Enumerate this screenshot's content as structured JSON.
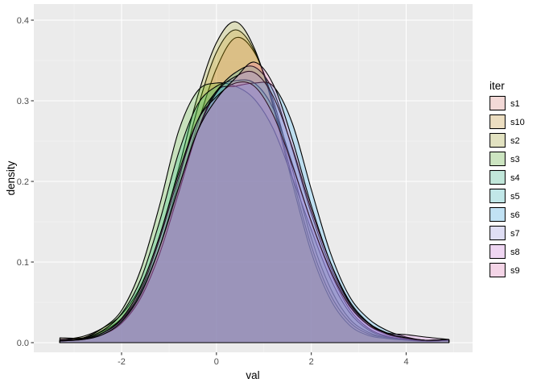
{
  "chart_data": {
    "type": "area",
    "title": "",
    "xlabel": "val",
    "ylabel": "density",
    "xlim": [
      -3.85,
      5.4
    ],
    "ylim": [
      -0.012,
      0.42
    ],
    "x_ticks": [
      -2,
      0,
      2,
      4
    ],
    "x_tick_labels": [
      "-2",
      "0",
      "2",
      "4"
    ],
    "y_ticks": [
      0.0,
      0.1,
      0.2,
      0.3,
      0.4
    ],
    "y_tick_labels": [
      "0.0",
      "0.1",
      "0.2",
      "0.3",
      "0.4"
    ],
    "grid": true,
    "legend": {
      "title": "iter",
      "position": "right"
    },
    "x": [
      -3.3,
      -2.8,
      -2.4,
      -2.0,
      -1.6,
      -1.2,
      -0.8,
      -0.4,
      0.0,
      0.4,
      0.8,
      1.2,
      1.6,
      2.0,
      2.4,
      2.8,
      3.2,
      3.6,
      4.0,
      4.4,
      4.9
    ],
    "series": [
      {
        "name": "s1",
        "color": "#F8766D",
        "values": [
          0.006,
          0.006,
          0.014,
          0.03,
          0.062,
          0.118,
          0.19,
          0.27,
          0.34,
          0.378,
          0.36,
          0.3,
          0.215,
          0.13,
          0.068,
          0.03,
          0.013,
          0.006,
          0.004,
          0.003,
          0.004
        ]
      },
      {
        "name": "s10",
        "color": "#D89000",
        "values": [
          0.003,
          0.004,
          0.01,
          0.025,
          0.058,
          0.118,
          0.2,
          0.29,
          0.36,
          0.388,
          0.362,
          0.295,
          0.205,
          0.12,
          0.06,
          0.026,
          0.011,
          0.006,
          0.004,
          0.003,
          0.004
        ]
      },
      {
        "name": "s2",
        "color": "#A3A500",
        "values": [
          0.003,
          0.008,
          0.018,
          0.035,
          0.07,
          0.132,
          0.215,
          0.305,
          0.372,
          0.398,
          0.365,
          0.292,
          0.198,
          0.112,
          0.054,
          0.022,
          0.009,
          0.005,
          0.003,
          0.002,
          0.003
        ]
      },
      {
        "name": "s3",
        "color": "#39B600",
        "values": [
          0.002,
          0.006,
          0.018,
          0.04,
          0.09,
          0.17,
          0.262,
          0.312,
          0.322,
          0.318,
          0.302,
          0.265,
          0.205,
          0.14,
          0.08,
          0.038,
          0.016,
          0.007,
          0.004,
          0.002,
          0.003
        ]
      },
      {
        "name": "s4",
        "color": "#00BF7D",
        "values": [
          0.002,
          0.006,
          0.015,
          0.036,
          0.078,
          0.15,
          0.235,
          0.295,
          0.318,
          0.325,
          0.322,
          0.29,
          0.222,
          0.15,
          0.088,
          0.042,
          0.018,
          0.008,
          0.004,
          0.002,
          0.003
        ]
      },
      {
        "name": "s5",
        "color": "#00BFC4",
        "values": [
          0.003,
          0.005,
          0.012,
          0.028,
          0.064,
          0.128,
          0.205,
          0.275,
          0.312,
          0.335,
          0.342,
          0.312,
          0.24,
          0.16,
          0.095,
          0.048,
          0.022,
          0.01,
          0.005,
          0.003,
          0.004
        ]
      },
      {
        "name": "s6",
        "color": "#00A5FF",
        "values": [
          0.002,
          0.004,
          0.01,
          0.024,
          0.055,
          0.11,
          0.185,
          0.262,
          0.312,
          0.318,
          0.322,
          0.318,
          0.272,
          0.19,
          0.112,
          0.058,
          0.03,
          0.015,
          0.007,
          0.003,
          0.004
        ]
      },
      {
        "name": "s7",
        "color": "#9590FF",
        "values": [
          0.003,
          0.005,
          0.012,
          0.028,
          0.06,
          0.118,
          0.192,
          0.262,
          0.31,
          0.33,
          0.335,
          0.305,
          0.242,
          0.165,
          0.1,
          0.052,
          0.025,
          0.012,
          0.006,
          0.003,
          0.004
        ]
      },
      {
        "name": "s8",
        "color": "#E76BF3",
        "values": [
          0.004,
          0.005,
          0.012,
          0.03,
          0.068,
          0.132,
          0.21,
          0.275,
          0.305,
          0.322,
          0.318,
          0.282,
          0.22,
          0.15,
          0.09,
          0.046,
          0.022,
          0.012,
          0.01,
          0.007,
          0.004
        ]
      },
      {
        "name": "s9",
        "color": "#FF62BC",
        "values": [
          0.002,
          0.004,
          0.01,
          0.026,
          0.06,
          0.118,
          0.192,
          0.262,
          0.302,
          0.328,
          0.348,
          0.32,
          0.252,
          0.17,
          0.1,
          0.05,
          0.024,
          0.011,
          0.006,
          0.003,
          0.004
        ]
      }
    ]
  }
}
